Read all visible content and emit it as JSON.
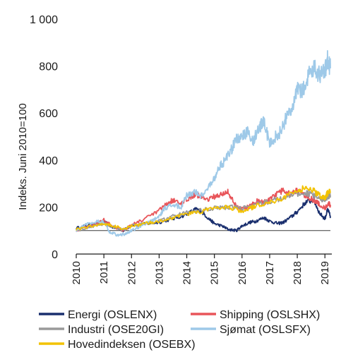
{
  "chart_data": {
    "type": "line",
    "title": "",
    "xlabel": "",
    "ylabel": "Indeks. Juni 2010=100",
    "x_ticks": [
      "2010",
      "2011",
      "2012",
      "2013",
      "2014",
      "2015",
      "2016",
      "2017",
      "2018",
      "2019"
    ],
    "y_ticks": [
      {
        "value": 0,
        "label": "0"
      },
      {
        "value": 200,
        "label": "200"
      },
      {
        "value": 400,
        "label": "400"
      },
      {
        "value": 600,
        "label": "600"
      },
      {
        "value": 800,
        "label": "800"
      },
      {
        "value": 1000,
        "label": "1 000"
      }
    ],
    "xlim": [
      2010.0,
      2019.25
    ],
    "ylim": [
      0,
      1000
    ],
    "baseline": 100,
    "grid": false,
    "legend_position": "bottom",
    "series": [
      {
        "name": "Energi (OSLENX)",
        "color": "#1a2f6e",
        "x": [
          2010.0,
          2010.5,
          2011.0,
          2011.3,
          2011.7,
          2012.0,
          2012.5,
          2013.0,
          2013.5,
          2014.0,
          2014.3,
          2014.5,
          2014.8,
          2015.0,
          2015.3,
          2015.5,
          2015.8,
          2016.0,
          2016.3,
          2016.5,
          2016.8,
          2017.0,
          2017.3,
          2017.5,
          2017.8,
          2018.0,
          2018.3,
          2018.6,
          2018.8,
          2019.0,
          2019.1,
          2019.2
        ],
        "y": [
          110,
          125,
          138,
          115,
          100,
          122,
          128,
          135,
          150,
          168,
          190,
          185,
          150,
          130,
          118,
          105,
          100,
          120,
          135,
          140,
          155,
          140,
          130,
          135,
          160,
          180,
          220,
          230,
          175,
          150,
          190,
          160
        ]
      },
      {
        "name": "Shipping (OSLSHX)",
        "color": "#e8555a",
        "x": [
          2010.0,
          2010.5,
          2011.0,
          2011.3,
          2011.7,
          2012.0,
          2012.5,
          2013.0,
          2013.3,
          2013.5,
          2013.8,
          2014.0,
          2014.3,
          2014.5,
          2014.8,
          2015.0,
          2015.3,
          2015.5,
          2015.8,
          2016.0,
          2016.3,
          2016.5,
          2016.8,
          2017.0,
          2017.3,
          2017.5,
          2017.8,
          2018.0,
          2018.3,
          2018.6,
          2018.8,
          2019.0,
          2019.1,
          2019.2
        ],
        "y": [
          100,
          120,
          145,
          120,
          100,
          125,
          150,
          185,
          215,
          230,
          210,
          235,
          255,
          245,
          235,
          245,
          255,
          265,
          200,
          190,
          205,
          225,
          220,
          230,
          260,
          270,
          255,
          270,
          250,
          230,
          210,
          195,
          215,
          210
        ]
      },
      {
        "name": "Industri (OSE20GI)",
        "color": "#9a9a9a",
        "x": [
          2010.0,
          2010.5,
          2011.0,
          2011.3,
          2011.7,
          2012.0,
          2012.5,
          2013.0,
          2013.5,
          2014.0,
          2014.5,
          2015.0,
          2015.5,
          2016.0,
          2016.5,
          2017.0,
          2017.5,
          2018.0,
          2018.3,
          2018.6,
          2018.8,
          2019.0,
          2019.1,
          2019.2
        ],
        "y": [
          100,
          115,
          130,
          118,
          102,
          120,
          130,
          140,
          160,
          175,
          185,
          195,
          200,
          195,
          210,
          225,
          240,
          255,
          260,
          250,
          235,
          230,
          245,
          250
        ]
      },
      {
        "name": "Sjømat (OSLSFX)",
        "color": "#9ec9e8",
        "x": [
          2010.0,
          2010.4,
          2010.8,
          2011.0,
          2011.2,
          2011.5,
          2011.8,
          2012.0,
          2012.3,
          2012.5,
          2012.8,
          2013.0,
          2013.2,
          2013.5,
          2013.8,
          2014.0,
          2014.3,
          2014.5,
          2014.8,
          2015.0,
          2015.2,
          2015.4,
          2015.6,
          2015.8,
          2016.0,
          2016.2,
          2016.4,
          2016.6,
          2016.8,
          2017.0,
          2017.2,
          2017.4,
          2017.6,
          2017.8,
          2018.0,
          2018.2,
          2018.4,
          2018.6,
          2018.8,
          2019.0,
          2019.1,
          2019.2
        ],
        "y": [
          100,
          130,
          140,
          135,
          95,
          80,
          85,
          100,
          115,
          130,
          145,
          160,
          195,
          210,
          200,
          250,
          265,
          245,
          290,
          320,
          375,
          400,
          440,
          490,
          500,
          520,
          480,
          540,
          560,
          470,
          500,
          520,
          580,
          620,
          700,
          690,
          760,
          800,
          760,
          780,
          830,
          790
        ]
      },
      {
        "name": "Hovedindeksen (OSEBX)",
        "color": "#f2c200",
        "x": [
          2010.0,
          2010.5,
          2011.0,
          2011.3,
          2011.7,
          2012.0,
          2012.5,
          2013.0,
          2013.5,
          2014.0,
          2014.5,
          2015.0,
          2015.5,
          2016.0,
          2016.3,
          2016.5,
          2017.0,
          2017.5,
          2018.0,
          2018.3,
          2018.6,
          2018.8,
          2019.0,
          2019.1,
          2019.2
        ],
        "y": [
          105,
          118,
          130,
          120,
          108,
          118,
          130,
          140,
          155,
          170,
          180,
          195,
          200,
          180,
          195,
          205,
          220,
          240,
          270,
          280,
          270,
          250,
          240,
          260,
          265
        ]
      }
    ]
  }
}
